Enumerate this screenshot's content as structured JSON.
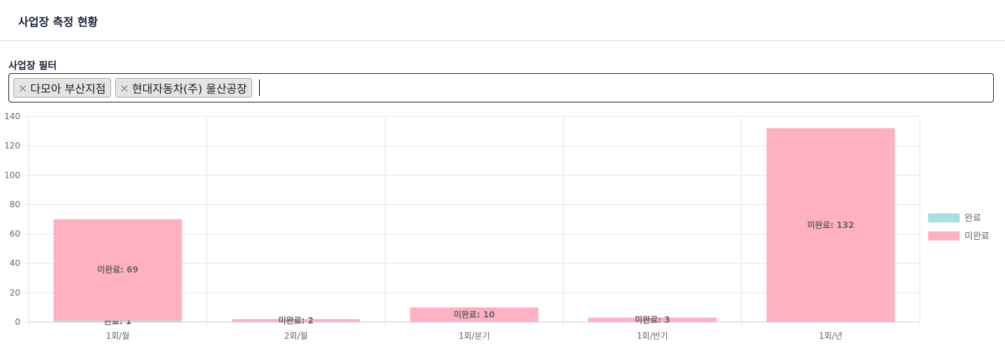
{
  "header": {
    "title": "사업장 측정 현황"
  },
  "filter": {
    "label": "사업장 필터",
    "tags": [
      {
        "label": "다모아 부산지점",
        "remove": "×"
      },
      {
        "label": "현대자동차(주) 울산공장",
        "remove": "×"
      }
    ]
  },
  "chart_data": {
    "type": "bar",
    "stacked": true,
    "categories": [
      "1회/월",
      "2회/월",
      "1회/분기",
      "1회/반기",
      "1회/년"
    ],
    "series": [
      {
        "name": "완료",
        "values": [
          1,
          0,
          0,
          0,
          0
        ],
        "color": "#a8dfe0"
      },
      {
        "name": "미완료",
        "values": [
          69,
          2,
          10,
          3,
          132
        ],
        "color": "#ffb1c1"
      }
    ],
    "ylim": [
      0,
      140
    ],
    "yticks": [
      0,
      20,
      40,
      60,
      80,
      100,
      120,
      140
    ],
    "grid": true,
    "legend": "right"
  }
}
